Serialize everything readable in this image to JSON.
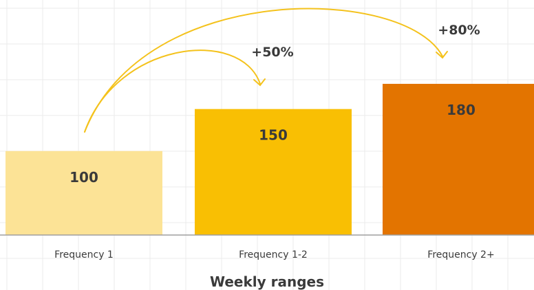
{
  "chart_data": {
    "type": "bar",
    "categories": [
      "Frequency 1",
      "Frequency 1-2",
      "Frequency 2+"
    ],
    "values": [
      100,
      150,
      180
    ],
    "value_labels": [
      "100",
      "150",
      "180"
    ],
    "xlabel": "Weekly ranges",
    "ylabel": "",
    "ylim": [
      0,
      180
    ],
    "grid": true,
    "legend": "none",
    "colors": [
      "#fce396",
      "#f9bf03",
      "#e37400"
    ],
    "arrow_color": "#f4c21c",
    "baseline_color": "#9e9e9e",
    "annotations": [
      {
        "from": 0,
        "to": 1,
        "label": "+50%"
      },
      {
        "from": 0,
        "to": 2,
        "label": "+80%"
      }
    ]
  }
}
